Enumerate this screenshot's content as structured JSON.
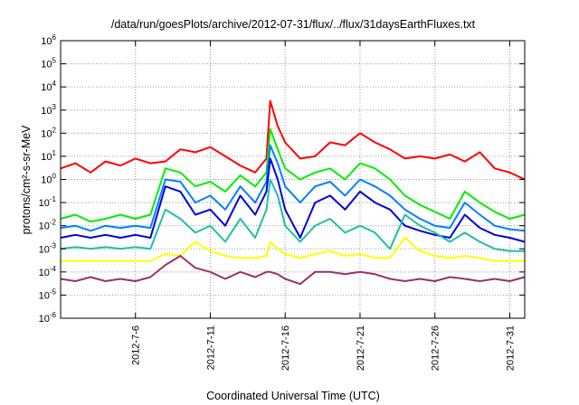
{
  "chart_data": {
    "type": "line",
    "title": "/data/run/goesPlots/archive/2012-07-31/flux/../flux/31daysEarthFluxes.txt",
    "xlabel": "Coordinated Universal Time (UTC)",
    "ylabel": "protons/cm²-s-sr-MeV",
    "x_range": [
      "2012-07-01",
      "2012-08-01"
    ],
    "ylim": [
      1e-06,
      1000000.0
    ],
    "yscale": "log",
    "grid": true,
    "legend": "none",
    "x_ticks": [
      {
        "date": "2012-07-06",
        "label": "2012-7-6"
      },
      {
        "date": "2012-07-11",
        "label": "2012-7-11"
      },
      {
        "date": "2012-07-16",
        "label": "2012-7-16"
      },
      {
        "date": "2012-07-21",
        "label": "2012-7-21"
      },
      {
        "date": "2012-07-26",
        "label": "2012-7-26"
      },
      {
        "date": "2012-07-31",
        "label": "2012-7-31"
      }
    ],
    "y_ticks": [
      {
        "value": 1e-06,
        "base": "10",
        "exp": "-6"
      },
      {
        "value": 1e-05,
        "base": "10",
        "exp": "-5"
      },
      {
        "value": 0.0001,
        "base": "10",
        "exp": "-4"
      },
      {
        "value": 0.001,
        "base": "10",
        "exp": "-3"
      },
      {
        "value": 0.01,
        "base": "10",
        "exp": "-2"
      },
      {
        "value": 0.1,
        "base": "10",
        "exp": "-1"
      },
      {
        "value": 1,
        "base": "10",
        "exp": "0"
      },
      {
        "value": 10,
        "base": "10",
        "exp": "1"
      },
      {
        "value": 100,
        "base": "10",
        "exp": "2"
      },
      {
        "value": 1000,
        "base": "10",
        "exp": "3"
      },
      {
        "value": 10000,
        "base": "10",
        "exp": "4"
      },
      {
        "value": 100000,
        "base": "10",
        "exp": "5"
      },
      {
        "value": 1000000,
        "base": "10",
        "exp": "6"
      }
    ],
    "series": [
      {
        "color": "#ff0000",
        "x": [
          "2012-07-01",
          "2012-07-02",
          "2012-07-03",
          "2012-07-04",
          "2012-07-05",
          "2012-07-06",
          "2012-07-07",
          "2012-07-08",
          "2012-07-09",
          "2012-07-10",
          "2012-07-11",
          "2012-07-12",
          "2012-07-13",
          "2012-07-14",
          "2012-07-14 18:00",
          "2012-07-15",
          "2012-07-15 12:00",
          "2012-07-16",
          "2012-07-17",
          "2012-07-18",
          "2012-07-19",
          "2012-07-20",
          "2012-07-21",
          "2012-07-22",
          "2012-07-23",
          "2012-07-24",
          "2012-07-25",
          "2012-07-26",
          "2012-07-27",
          "2012-07-28",
          "2012-07-29",
          "2012-07-30",
          "2012-07-31",
          "2012-08-01"
        ],
        "values": [
          3,
          5,
          2,
          6,
          4,
          8,
          5,
          6,
          20,
          15,
          25,
          10,
          4,
          2,
          8,
          2500,
          200,
          40,
          8,
          10,
          40,
          30,
          100,
          40,
          20,
          8,
          10,
          8,
          12,
          6,
          15,
          3,
          2,
          1
        ]
      },
      {
        "color": "#00ee00",
        "x": [
          "2012-07-01",
          "2012-07-02",
          "2012-07-03",
          "2012-07-04",
          "2012-07-05",
          "2012-07-06",
          "2012-07-07",
          "2012-07-08",
          "2012-07-09",
          "2012-07-10",
          "2012-07-11",
          "2012-07-12",
          "2012-07-13",
          "2012-07-14",
          "2012-07-14 18:00",
          "2012-07-15",
          "2012-07-15 12:00",
          "2012-07-16",
          "2012-07-17",
          "2012-07-18",
          "2012-07-19",
          "2012-07-20",
          "2012-07-21",
          "2012-07-22",
          "2012-07-23",
          "2012-07-24",
          "2012-07-25",
          "2012-07-26",
          "2012-07-27",
          "2012-07-28",
          "2012-07-29",
          "2012-07-30",
          "2012-07-31",
          "2012-08-01"
        ],
        "values": [
          0.02,
          0.03,
          0.015,
          0.02,
          0.03,
          0.02,
          0.03,
          3,
          2,
          0.5,
          0.8,
          0.3,
          1.5,
          0.5,
          2,
          150,
          20,
          3,
          1,
          2,
          3,
          1,
          5,
          3,
          1,
          0.2,
          0.08,
          0.04,
          0.02,
          0.3,
          0.1,
          0.04,
          0.02,
          0.03
        ]
      },
      {
        "color": "#0080ff",
        "x": [
          "2012-07-01",
          "2012-07-02",
          "2012-07-03",
          "2012-07-04",
          "2012-07-05",
          "2012-07-06",
          "2012-07-07",
          "2012-07-08",
          "2012-07-09",
          "2012-07-10",
          "2012-07-11",
          "2012-07-12",
          "2012-07-13",
          "2012-07-14",
          "2012-07-14 18:00",
          "2012-07-15",
          "2012-07-15 12:00",
          "2012-07-16",
          "2012-07-17",
          "2012-07-18",
          "2012-07-19",
          "2012-07-20",
          "2012-07-21",
          "2012-07-22",
          "2012-07-23",
          "2012-07-24",
          "2012-07-25",
          "2012-07-26",
          "2012-07-27",
          "2012-07-28",
          "2012-07-29",
          "2012-07-30",
          "2012-07-31",
          "2012-08-01"
        ],
        "values": [
          0.008,
          0.01,
          0.006,
          0.01,
          0.008,
          0.01,
          0.008,
          1,
          0.8,
          0.1,
          0.2,
          0.05,
          0.5,
          0.1,
          0.8,
          30,
          5,
          0.5,
          0.1,
          0.5,
          0.8,
          0.2,
          1,
          0.5,
          0.2,
          0.05,
          0.02,
          0.01,
          0.008,
          0.1,
          0.03,
          0.01,
          0.007,
          0.006
        ]
      },
      {
        "color": "#0000dd",
        "x": [
          "2012-07-01",
          "2012-07-02",
          "2012-07-03",
          "2012-07-04",
          "2012-07-05",
          "2012-07-06",
          "2012-07-07",
          "2012-07-08",
          "2012-07-09",
          "2012-07-10",
          "2012-07-11",
          "2012-07-12",
          "2012-07-13",
          "2012-07-14",
          "2012-07-14 18:00",
          "2012-07-15",
          "2012-07-15 12:00",
          "2012-07-16",
          "2012-07-17",
          "2012-07-18",
          "2012-07-19",
          "2012-07-20",
          "2012-07-21",
          "2012-07-22",
          "2012-07-23",
          "2012-07-24",
          "2012-07-25",
          "2012-07-26",
          "2012-07-27",
          "2012-07-28",
          "2012-07-29",
          "2012-07-30",
          "2012-07-31",
          "2012-08-01"
        ],
        "values": [
          0.003,
          0.004,
          0.003,
          0.004,
          0.003,
          0.004,
          0.003,
          0.5,
          0.3,
          0.03,
          0.05,
          0.01,
          0.2,
          0.03,
          0.3,
          8,
          1,
          0.05,
          0.003,
          0.1,
          0.2,
          0.05,
          0.3,
          0.1,
          0.05,
          0.01,
          0.006,
          0.004,
          0.003,
          0.03,
          0.008,
          0.004,
          0.003,
          0.002
        ]
      },
      {
        "color": "#20c0a0",
        "x": [
          "2012-07-01",
          "2012-07-02",
          "2012-07-03",
          "2012-07-04",
          "2012-07-05",
          "2012-07-06",
          "2012-07-07",
          "2012-07-08",
          "2012-07-09",
          "2012-07-10",
          "2012-07-11",
          "2012-07-12",
          "2012-07-13",
          "2012-07-14",
          "2012-07-14 18:00",
          "2012-07-15",
          "2012-07-15 12:00",
          "2012-07-16",
          "2012-07-17",
          "2012-07-18",
          "2012-07-19",
          "2012-07-20",
          "2012-07-21",
          "2012-07-22",
          "2012-07-23",
          "2012-07-24",
          "2012-07-25",
          "2012-07-26",
          "2012-07-27",
          "2012-07-28",
          "2012-07-29",
          "2012-07-30",
          "2012-07-31",
          "2012-08-01"
        ],
        "values": [
          0.001,
          0.0012,
          0.001,
          0.0012,
          0.001,
          0.0012,
          0.001,
          0.05,
          0.02,
          0.005,
          0.01,
          0.002,
          0.02,
          0.003,
          0.05,
          1,
          0.2,
          0.01,
          0.002,
          0.01,
          0.02,
          0.005,
          0.01,
          0.005,
          0.001,
          0.03,
          0.01,
          0.005,
          0.002,
          0.005,
          0.002,
          0.001,
          0.0008,
          0.0008
        ]
      },
      {
        "color": "#ffff00",
        "x": [
          "2012-07-01",
          "2012-07-02",
          "2012-07-03",
          "2012-07-04",
          "2012-07-05",
          "2012-07-06",
          "2012-07-07",
          "2012-07-08",
          "2012-07-09",
          "2012-07-10",
          "2012-07-11",
          "2012-07-12",
          "2012-07-13",
          "2012-07-14",
          "2012-07-14 18:00",
          "2012-07-15",
          "2012-07-15 12:00",
          "2012-07-16",
          "2012-07-17",
          "2012-07-18",
          "2012-07-19",
          "2012-07-20",
          "2012-07-21",
          "2012-07-22",
          "2012-07-23",
          "2012-07-24",
          "2012-07-25",
          "2012-07-26",
          "2012-07-27",
          "2012-07-28",
          "2012-07-29",
          "2012-07-30",
          "2012-07-31",
          "2012-08-01"
        ],
        "values": [
          0.0003,
          0.0003,
          0.0003,
          0.0003,
          0.0003,
          0.0003,
          0.0003,
          0.0006,
          0.0005,
          0.002,
          0.0008,
          0.0005,
          0.0004,
          0.0004,
          0.0005,
          0.002,
          0.001,
          0.0006,
          0.0004,
          0.0006,
          0.0008,
          0.0005,
          0.0006,
          0.0004,
          0.0004,
          0.003,
          0.0008,
          0.0005,
          0.0004,
          0.0005,
          0.0004,
          0.0003,
          0.0003,
          0.0003
        ]
      },
      {
        "color": "#993366",
        "x": [
          "2012-07-01",
          "2012-07-02",
          "2012-07-03",
          "2012-07-04",
          "2012-07-05",
          "2012-07-06",
          "2012-07-07",
          "2012-07-08",
          "2012-07-09",
          "2012-07-10",
          "2012-07-11",
          "2012-07-12",
          "2012-07-13",
          "2012-07-14",
          "2012-07-14 18:00",
          "2012-07-15",
          "2012-07-15 12:00",
          "2012-07-16",
          "2012-07-17",
          "2012-07-18",
          "2012-07-19",
          "2012-07-20",
          "2012-07-21",
          "2012-07-22",
          "2012-07-23",
          "2012-07-24",
          "2012-07-25",
          "2012-07-26",
          "2012-07-27",
          "2012-07-28",
          "2012-07-29",
          "2012-07-30",
          "2012-07-31",
          "2012-08-01"
        ],
        "values": [
          5e-05,
          4e-05,
          6e-05,
          4e-05,
          5e-05,
          4e-05,
          6e-05,
          0.0002,
          0.0005,
          0.00015,
          0.0001,
          5e-05,
          0.0001,
          6e-05,
          0.0001,
          0.0001,
          8e-05,
          5e-05,
          3e-05,
          0.0001,
          0.0001,
          8e-05,
          0.0001,
          8e-05,
          5e-05,
          4e-05,
          5e-05,
          4e-05,
          6e-05,
          5e-05,
          4e-05,
          5e-05,
          4e-05,
          6e-05
        ]
      }
    ]
  }
}
